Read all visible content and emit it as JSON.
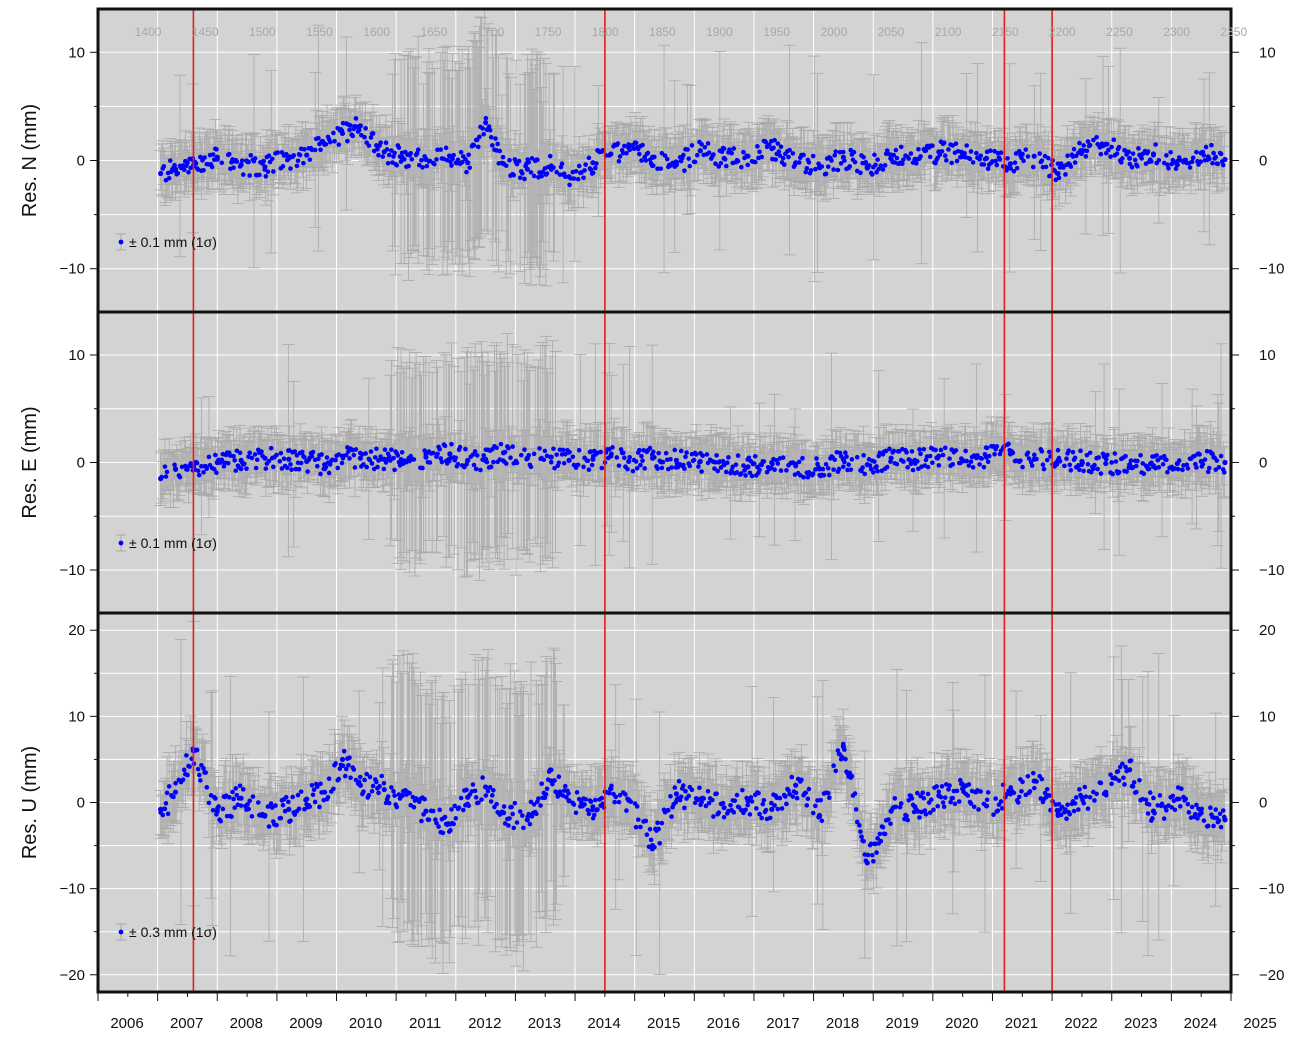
{
  "chart_data": [
    {
      "type": "scatter",
      "panel": "north",
      "ylabel": "Res. N (mm)",
      "ylim": [
        -14,
        14
      ],
      "yticks": [
        -10,
        0,
        10
      ],
      "legend": "± 0.1 mm (1σ)",
      "series": [
        {
          "name": "",
          "x": [
            2007.05,
            2007.3,
            2007.6,
            2008.0,
            2008.4,
            2008.8,
            2009.2,
            2009.5,
            2009.8,
            2010.1,
            2010.4,
            2010.8,
            2011.1,
            2011.5,
            2011.9,
            2012.2,
            2012.5,
            2012.8,
            2013.2,
            2013.6,
            2013.9,
            2014.3,
            2014.6,
            2014.9,
            2015.3,
            2015.7,
            2016.1,
            2016.5,
            2016.9,
            2017.3,
            2017.7,
            2018.1,
            2018.5,
            2018.9,
            2019.3,
            2019.7,
            2020.1,
            2020.5,
            2020.9,
            2021.3,
            2021.7,
            2022.1,
            2022.5,
            2022.9,
            2023.3,
            2023.7,
            2024.1,
            2024.5,
            2024.9
          ],
          "y": [
            -1.2,
            -0.8,
            -0.5,
            0.3,
            -0.4,
            -0.6,
            0.2,
            0.5,
            1.5,
            2.5,
            3.2,
            0.8,
            0.3,
            0.1,
            0.4,
            -0.2,
            3.5,
            -0.3,
            -0.8,
            -0.5,
            -1.5,
            -0.2,
            0.6,
            1.2,
            0.3,
            -0.4,
            0.9,
            0.2,
            0.4,
            1.1,
            -0.2,
            -0.6,
            0.3,
            -0.7,
            0.5,
            0.1,
            0.8,
            0.6,
            0.2,
            -0.3,
            0.4,
            -1.2,
            0.9,
            1.5,
            0.2,
            0.6,
            -0.4,
            0.7,
            0.1
          ]
        }
      ]
    },
    {
      "type": "scatter",
      "panel": "east",
      "ylabel": "Res. E (mm)",
      "ylim": [
        -14,
        14
      ],
      "yticks": [
        -10,
        0,
        10
      ],
      "legend": "± 0.1 mm (1σ)",
      "series": [
        {
          "name": "",
          "x": [
            2007.05,
            2007.3,
            2007.6,
            2008.0,
            2008.4,
            2008.8,
            2009.2,
            2009.5,
            2009.8,
            2010.1,
            2010.4,
            2010.8,
            2011.1,
            2011.5,
            2011.9,
            2012.2,
            2012.5,
            2012.8,
            2013.2,
            2013.6,
            2013.9,
            2014.3,
            2014.6,
            2014.9,
            2015.3,
            2015.7,
            2016.1,
            2016.5,
            2016.9,
            2017.3,
            2017.7,
            2018.1,
            2018.5,
            2018.9,
            2019.3,
            2019.7,
            2020.1,
            2020.5,
            2020.9,
            2021.3,
            2021.7,
            2022.1,
            2022.5,
            2022.9,
            2023.3,
            2023.7,
            2024.1,
            2024.5,
            2024.9
          ],
          "y": [
            -1.5,
            -0.6,
            -0.3,
            0.0,
            0.2,
            0.4,
            0.3,
            0.1,
            -0.2,
            0.6,
            0.4,
            0.3,
            0.1,
            0.5,
            0.8,
            0.2,
            0.3,
            0.9,
            0.4,
            0.5,
            0.2,
            0.3,
            0.6,
            0.1,
            0.4,
            0.2,
            0.1,
            -0.2,
            -0.4,
            0.0,
            -0.3,
            -0.6,
            0.3,
            -0.2,
            0.4,
            0.2,
            0.6,
            0.2,
            0.5,
            0.8,
            0.3,
            0.2,
            0.1,
            -0.1,
            -0.2,
            -0.3,
            -0.1,
            0.1,
            0.0
          ]
        }
      ]
    },
    {
      "type": "scatter",
      "panel": "up",
      "ylabel": "Res. U (mm)",
      "ylim": [
        -22,
        22
      ],
      "yticks": [
        -20,
        -10,
        0,
        10,
        20
      ],
      "legend": "± 0.3 mm (1σ)",
      "series": [
        {
          "name": "",
          "x": [
            2007.05,
            2007.3,
            2007.6,
            2008.0,
            2008.4,
            2008.8,
            2009.2,
            2009.5,
            2009.8,
            2010.1,
            2010.4,
            2010.8,
            2011.1,
            2011.5,
            2011.9,
            2012.2,
            2012.5,
            2012.8,
            2013.2,
            2013.6,
            2013.9,
            2014.3,
            2014.6,
            2014.9,
            2015.3,
            2015.7,
            2016.1,
            2016.5,
            2016.9,
            2017.3,
            2017.7,
            2018.1,
            2018.5,
            2018.9,
            2019.3,
            2019.7,
            2020.1,
            2020.5,
            2020.9,
            2021.3,
            2021.7,
            2022.1,
            2022.5,
            2022.9,
            2023.3,
            2023.7,
            2024.1,
            2024.5,
            2024.9
          ],
          "y": [
            -0.8,
            1.2,
            6.0,
            -1.0,
            0.5,
            -1.5,
            -0.8,
            0.4,
            1.2,
            5.0,
            2.0,
            1.5,
            0.8,
            -1.0,
            -2.5,
            0.6,
            1.8,
            -1.2,
            -2.0,
            2.5,
            0.2,
            -0.5,
            1.6,
            0.3,
            -5.0,
            1.0,
            0.4,
            -0.6,
            0.2,
            -0.8,
            2.0,
            -1.5,
            6.5,
            -7.0,
            -1.0,
            -0.5,
            0.8,
            1.6,
            -0.4,
            1.0,
            2.5,
            -1.5,
            0.6,
            1.2,
            3.8,
            -1.0,
            0.4,
            -1.2,
            -2.0
          ]
        }
      ]
    }
  ],
  "x_axis": {
    "range": [
      2006,
      2025
    ],
    "tick_labels": [
      "2006",
      "2007",
      "2008",
      "2009",
      "2010",
      "2011",
      "2012",
      "2013",
      "2014",
      "2015",
      "2016",
      "2017",
      "2018",
      "2019",
      "2020",
      "2021",
      "2022",
      "2023",
      "2024",
      "2025"
    ]
  },
  "gps_week_axis": {
    "tick_labels": [
      "1400",
      "1450",
      "1500",
      "1550",
      "1600",
      "1650",
      "1700",
      "1750",
      "1800",
      "1850",
      "1900",
      "1950",
      "2000",
      "2050",
      "2100",
      "2150",
      "2200",
      "2250",
      "2300",
      "2350"
    ]
  },
  "discontinuities": [
    2007.6,
    2014.5,
    2021.2,
    2022.0
  ],
  "colors": {
    "points": "#0000ff",
    "error_bars": "#a9a9a9",
    "background": "#d3d3d3",
    "grid": "#ffffff",
    "discontinuity": "#e0201a",
    "frame": "#111111"
  }
}
